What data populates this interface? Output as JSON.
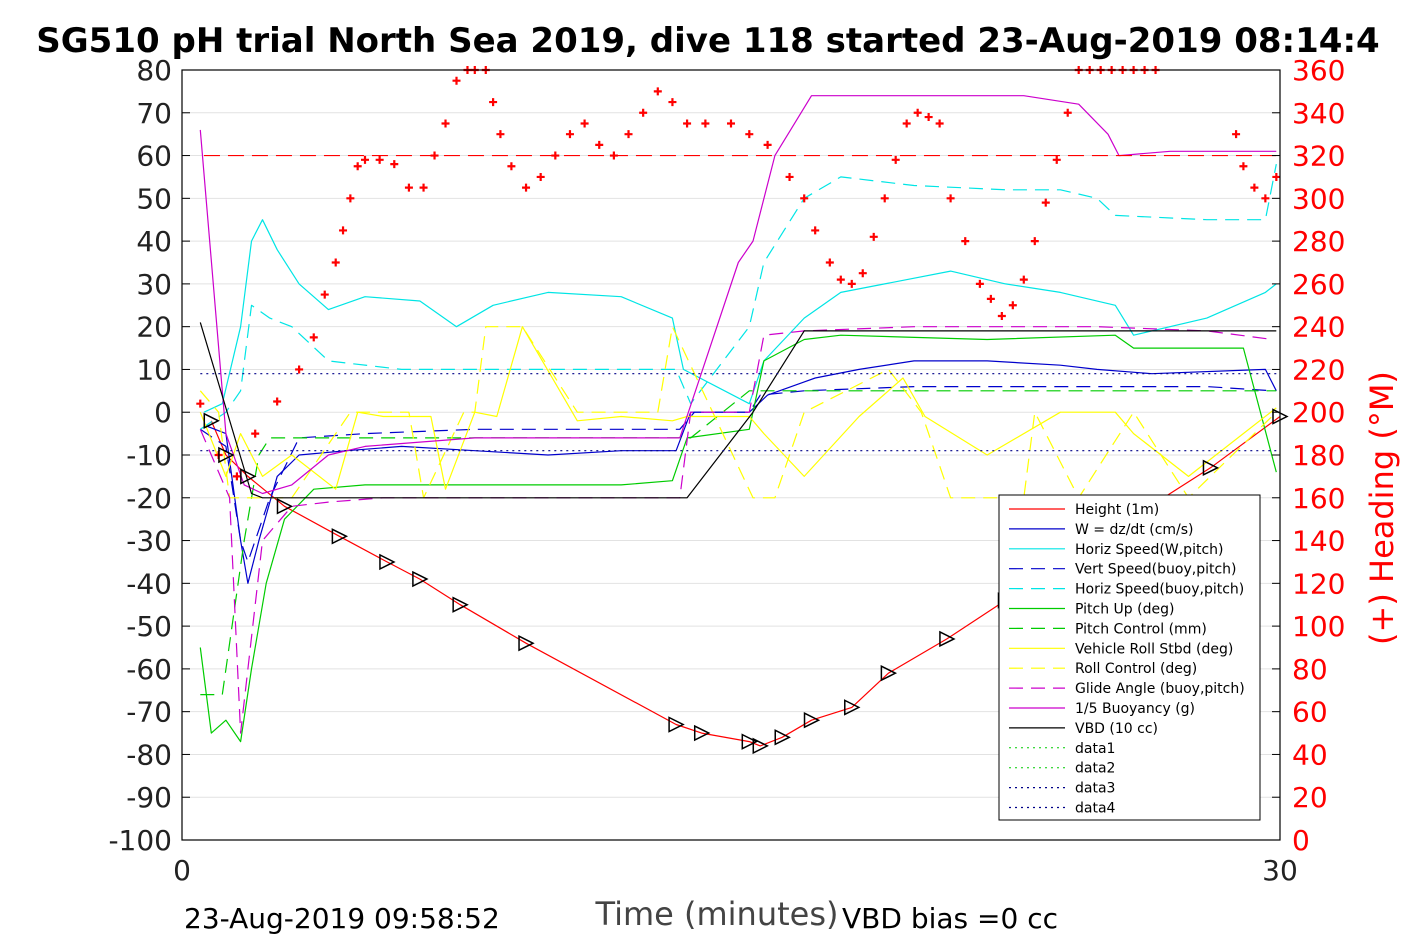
{
  "chart_data": {
    "type": "line",
    "title": "SG510 pH trial North Sea 2019, dive 118 started 23-Aug-2019 08:14:4",
    "xlabel": "Time (minutes)",
    "ylabel_right": "(+) Heading (°M)",
    "footer_left": "23-Aug-2019 09:58:52",
    "footer_right": "VBD bias =0 cc",
    "xlim": [
      0,
      30
    ],
    "ylim_left": [
      -100,
      80
    ],
    "ylim_right": [
      0,
      360
    ],
    "x_ticks": [
      "0",
      "30"
    ],
    "y_ticks_left": [
      "80",
      "70",
      "60",
      "50",
      "40",
      "30",
      "20",
      "10",
      "0",
      "-10",
      "-20",
      "-30",
      "-40",
      "-50",
      "-60",
      "-70",
      "-80",
      "-90",
      "-100"
    ],
    "y_ticks_right": [
      "360",
      "340",
      "320",
      "300",
      "280",
      "260",
      "240",
      "220",
      "200",
      "180",
      "160",
      "140",
      "120",
      "100",
      "80",
      "60",
      "40",
      "20",
      "0"
    ],
    "colors": {
      "height": "#ff0000",
      "w": "#0000cc",
      "horiz_w": "#00e5e5",
      "vert_buoy": "#0000cc",
      "horiz_buoy": "#00e5e5",
      "pitch_up": "#00cc00",
      "pitch_ctrl": "#00cc00",
      "roll": "#ffff00",
      "roll_ctrl": "#ffff00",
      "glide": "#cc00cc",
      "buoyancy": "#cc00cc",
      "vbd": "#000000",
      "heading": "#ff0000"
    },
    "legend": {
      "placement": "lower-right",
      "entries": [
        {
          "name": "Height (1m)"
        },
        {
          "name": "W = dz/dt (cm/s)"
        },
        {
          "name": "Horiz Speed(W,pitch)"
        },
        {
          "name": "Vert Speed(buoy,pitch)"
        },
        {
          "name": "Horiz Speed(buoy,pitch)"
        },
        {
          "name": "Pitch Up (deg)"
        },
        {
          "name": "Pitch Control (mm)"
        },
        {
          "name": "Vehicle Roll Stbd (deg)"
        },
        {
          "name": "Roll Control (deg)"
        },
        {
          "name": "Glide Angle (buoy,pitch)"
        },
        {
          "name": "1/5 Buoyancy (g)"
        },
        {
          "name": "VBD (10 cc)"
        },
        {
          "name": "data1"
        },
        {
          "name": "data2"
        },
        {
          "name": "data3"
        },
        {
          "name": "data4"
        }
      ]
    },
    "reference_lines": {
      "heading_target_deg": 320,
      "data3_y": 9,
      "data4_y": -9
    },
    "series": [
      {
        "name": "Height (1m)",
        "axis": "left",
        "x": [
          0.8,
          1.2,
          1.8,
          2.8,
          4.3,
          5.6,
          6.5,
          7.6,
          9.4,
          13.5,
          14.2,
          15.5,
          15.8,
          16.4,
          17.2,
          18.3,
          19.3,
          20.9,
          22.5,
          23.0,
          23.7,
          25.9,
          28.1,
          30.0
        ],
        "y": [
          -2,
          -10,
          -15,
          -22,
          -29,
          -35,
          -39,
          -45,
          -54,
          -73,
          -75,
          -77,
          -78,
          -76,
          -72,
          -69,
          -61,
          -53,
          -44,
          -41,
          -33,
          -25,
          -13,
          -1
        ]
      },
      {
        "name": "W = dz/dt (cm/s)",
        "axis": "left",
        "x": [
          0.6,
          1.2,
          1.6,
          1.8,
          2.1,
          2.6,
          3.2,
          4.5,
          6.0,
          8.0,
          10.0,
          12.0,
          13.5,
          13.9,
          15.5,
          16.0,
          17.3,
          18.5,
          20.0,
          22.0,
          24.0,
          25.0,
          26.5,
          29.6,
          29.9
        ],
        "y": [
          -3,
          -5,
          -30,
          -40,
          -30,
          -15,
          -10,
          -9,
          -8,
          -9,
          -10,
          -9,
          -9,
          0,
          0,
          4,
          8,
          10,
          12,
          12,
          11,
          10,
          9,
          10,
          5
        ]
      },
      {
        "name": "Horiz Speed(W,pitch)",
        "axis": "left",
        "x": [
          0.6,
          1.1,
          1.6,
          1.9,
          2.2,
          2.6,
          3.2,
          4.0,
          5.0,
          6.5,
          7.5,
          8.5,
          10.0,
          12.0,
          13.4,
          13.7,
          15.5,
          15.9,
          17.0,
          18.0,
          19.2,
          21.0,
          22.5,
          24.0,
          25.5,
          26.0,
          28.0,
          29.6,
          29.9
        ],
        "y": [
          0,
          2,
          20,
          40,
          45,
          38,
          30,
          24,
          27,
          26,
          20,
          25,
          28,
          27,
          22,
          10,
          2,
          12,
          22,
          28,
          30,
          33,
          30,
          28,
          25,
          18,
          22,
          28,
          30
        ]
      },
      {
        "name": "Vert Speed(buoy,pitch)",
        "axis": "left",
        "x": [
          0.5,
          1.2,
          1.6,
          1.8,
          2.4,
          3.2,
          5.0,
          8.0,
          12.0,
          13.6,
          14.0,
          15.5,
          15.8,
          17.0,
          20.0,
          25.0,
          28.0,
          29.8
        ],
        "y": [
          -4,
          -8,
          -30,
          -35,
          -20,
          -6,
          -5,
          -4,
          -4,
          -4,
          0,
          0,
          4,
          5,
          6,
          6,
          6,
          5
        ]
      },
      {
        "name": "Horiz Speed(buoy,pitch)",
        "axis": "left",
        "x": [
          0.5,
          1.2,
          1.6,
          1.9,
          2.4,
          3.0,
          4.0,
          6.0,
          9.0,
          12.0,
          13.5,
          13.9,
          15.5,
          15.9,
          17.0,
          18.0,
          20.0,
          22.5,
          24.0,
          25.0,
          25.5,
          28.0,
          29.6,
          29.9
        ],
        "y": [
          -4,
          0,
          5,
          25,
          22,
          20,
          12,
          10,
          10,
          10,
          10,
          2,
          20,
          35,
          50,
          55,
          53,
          52,
          52,
          50,
          46,
          45,
          45,
          58
        ]
      },
      {
        "name": "Pitch Up (deg)",
        "axis": "left",
        "x": [
          0.5,
          0.8,
          1.2,
          1.6,
          1.9,
          2.3,
          2.8,
          3.6,
          5.0,
          8.0,
          12.0,
          13.4,
          13.8,
          15.5,
          15.9,
          17.0,
          18.0,
          22.0,
          25.5,
          26.0,
          29.0,
          29.9
        ],
        "y": [
          -55,
          -75,
          -72,
          -77,
          -60,
          -40,
          -25,
          -18,
          -17,
          -17,
          -17,
          -16,
          -6,
          -4,
          12,
          17,
          18,
          17,
          18,
          15,
          15,
          -14
        ]
      },
      {
        "name": "Pitch Control (mm)",
        "axis": "left",
        "x": [
          0.5,
          1.1,
          1.7,
          2.1,
          2.4,
          3.0,
          5.0,
          10.0,
          13.7,
          13.9,
          15.5,
          15.9,
          17.0,
          25.5,
          28.0,
          29.9
        ],
        "y": [
          -66,
          -66,
          -30,
          -10,
          -6,
          -6,
          -6,
          -6,
          -6,
          -6,
          5,
          5,
          5,
          5,
          5,
          5
        ]
      },
      {
        "name": "Vehicle Roll Stbd (deg)",
        "axis": "left",
        "x": [
          0.5,
          1.2,
          1.6,
          2.2,
          3.0,
          4.2,
          4.8,
          5.5,
          6.8,
          7.2,
          8.0,
          8.6,
          9.3,
          10.8,
          12.0,
          13.4,
          13.8,
          15.5,
          15.9,
          17.0,
          18.5,
          19.7,
          20.3,
          22.0,
          24.0,
          25.5,
          26.0,
          27.5,
          29.9
        ],
        "y": [
          0,
          -15,
          -5,
          -15,
          -10,
          -18,
          0,
          -1,
          -1,
          -18,
          0,
          -1,
          20,
          -2,
          -1,
          -2,
          -1,
          -1,
          -5,
          -15,
          -1,
          8,
          -1,
          -10,
          0,
          0,
          -5,
          -15,
          1
        ]
      },
      {
        "name": "Roll Control (deg)",
        "axis": "left",
        "x": [
          0.5,
          1.0,
          1.3,
          3.0,
          4.6,
          6.2,
          6.6,
          7.7,
          8.0,
          8.3,
          9.3,
          10.8,
          13.0,
          13.4,
          15.6,
          16.2,
          17.0,
          19.3,
          20.2,
          21.0,
          23.0,
          23.3,
          24.5,
          26.0,
          27.5,
          29.9
        ],
        "y": [
          5,
          0,
          -20,
          -20,
          0,
          0,
          -20,
          0,
          0,
          20,
          20,
          0,
          0,
          20,
          -20,
          -20,
          0,
          10,
          0,
          -20,
          -20,
          0,
          -20,
          0,
          -20,
          0
        ]
      },
      {
        "name": "Glide Angle (buoy,pitch)",
        "axis": "left",
        "x": [
          0.5,
          1.3,
          1.6,
          1.8,
          2.2,
          3.0,
          4.0,
          5.5,
          8.0,
          12.0,
          13.6,
          13.9,
          15.5,
          15.9,
          17.0,
          20.0,
          25.0,
          28.0,
          29.8
        ],
        "y": [
          -4,
          -20,
          -75,
          -60,
          -30,
          -22,
          -21,
          -20,
          -20,
          -20,
          -20,
          0,
          0,
          18,
          19,
          20,
          20,
          19,
          17
        ]
      },
      {
        "name": "1/5 Buoyancy (g)",
        "axis": "left",
        "x": [
          0.5,
          1.2,
          1.7,
          2.2,
          3.0,
          4.0,
          5.0,
          8.0,
          12.0,
          13.6,
          15.2,
          15.6,
          16.2,
          17.2,
          20.0,
          23.0,
          24.5,
          25.3,
          25.6,
          27.0,
          29.9
        ],
        "y": [
          66,
          -5,
          -17,
          -19,
          -17,
          -10,
          -8,
          -6,
          -6,
          -6,
          35,
          40,
          60,
          74,
          74,
          74,
          72,
          65,
          60,
          61,
          61
        ]
      },
      {
        "name": "VBD (10 cc)",
        "axis": "left",
        "x": [
          0.5,
          1.9,
          2.2,
          4.0,
          13.8,
          15.6,
          17.0,
          17.4,
          29.9
        ],
        "y": [
          21,
          -19,
          -20,
          -20,
          -20,
          0,
          19,
          19,
          19
        ]
      },
      {
        "name": "data3",
        "axis": "left",
        "x": [
          0.5,
          29.9
        ],
        "y": [
          9,
          9
        ]
      },
      {
        "name": "data4",
        "axis": "left",
        "x": [
          0.5,
          29.9
        ],
        "y": [
          -9,
          -9
        ]
      },
      {
        "name": "Heading",
        "axis": "right",
        "x": [
          0.5,
          1.0,
          1.5,
          2.0,
          2.6,
          3.2,
          3.6,
          3.9,
          4.2,
          4.4,
          4.6,
          4.8,
          5.0,
          5.4,
          5.8,
          6.2,
          6.6,
          6.9,
          7.2,
          7.5,
          7.8,
          8.0,
          8.3,
          8.5,
          8.7,
          9.0,
          9.4,
          9.8,
          10.2,
          10.6,
          11.0,
          11.4,
          11.8,
          12.2,
          12.6,
          13.0,
          13.4,
          13.8,
          14.3,
          15.0,
          15.5,
          16.0,
          16.6,
          17.0,
          17.3,
          17.7,
          18.0,
          18.3,
          18.6,
          18.9,
          19.2,
          19.5,
          19.8,
          20.1,
          20.4,
          20.7,
          21.0,
          21.4,
          21.8,
          22.1,
          22.4,
          22.7,
          23.0,
          23.3,
          23.6,
          23.9,
          24.2,
          24.5,
          24.8,
          25.1,
          25.4,
          25.7,
          26.0,
          26.3,
          26.6,
          28.8,
          29.0,
          29.3,
          29.6,
          29.9
        ],
        "y": [
          204,
          180,
          170,
          190,
          205,
          220,
          235,
          255,
          270,
          285,
          300,
          315,
          318,
          318,
          316,
          305,
          305,
          320,
          335,
          355,
          360,
          360,
          360,
          345,
          330,
          315,
          305,
          310,
          320,
          330,
          335,
          325,
          320,
          330,
          340,
          350,
          345,
          335,
          335,
          335,
          330,
          325,
          310,
          300,
          285,
          270,
          262,
          260,
          265,
          282,
          300,
          318,
          335,
          340,
          338,
          335,
          300,
          280,
          260,
          253,
          245,
          250,
          262,
          280,
          298,
          318,
          340,
          360,
          360,
          360,
          360,
          360,
          360,
          360,
          360,
          330,
          315,
          305,
          300,
          310
        ]
      }
    ]
  }
}
